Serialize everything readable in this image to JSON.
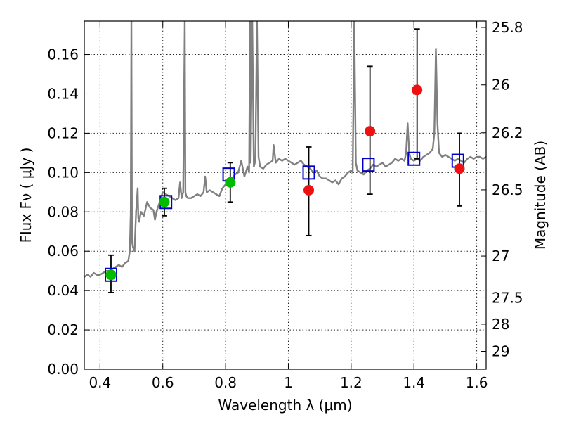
{
  "chart_data": {
    "type": "scatter",
    "xlabel": "Wavelength  λ (μm)",
    "ylabel": "Flux  Fν  ( μJy )",
    "y2label": "Magnitude (AB)",
    "xlim": [
      0.35,
      1.63
    ],
    "ylim": [
      0.0,
      0.177
    ],
    "x_ticks": [
      0.4,
      0.6,
      0.8,
      1.0,
      1.2,
      1.4,
      1.6
    ],
    "x_tick_labels": [
      "0.4",
      "0.6",
      "0.8",
      "1",
      "1.2",
      "1.4",
      "1.6"
    ],
    "y_ticks": [
      0.0,
      0.02,
      0.04,
      0.06,
      0.08,
      0.1,
      0.12,
      0.14,
      0.16
    ],
    "y_tick_labels": [
      "0.00",
      "0.02",
      "0.04",
      "0.06",
      "0.08",
      "0.10",
      "0.12",
      "0.14",
      "0.16"
    ],
    "y2_ticks": [
      25.8,
      26,
      26.2,
      26.5,
      27,
      27.5,
      28,
      29
    ],
    "y2_tick_labels": [
      "25.8",
      "26",
      "26.2",
      "26.5",
      "27",
      "27.5",
      "28",
      "29"
    ],
    "grid": true,
    "series": [
      {
        "kind": "line",
        "color": "#808080",
        "x": [
          0.35,
          0.36,
          0.37,
          0.38,
          0.39,
          0.4,
          0.41,
          0.42,
          0.43,
          0.44,
          0.45,
          0.46,
          0.47,
          0.48,
          0.49,
          0.495,
          0.498,
          0.5,
          0.502,
          0.505,
          0.51,
          0.515,
          0.52,
          0.522,
          0.525,
          0.53,
          0.54,
          0.55,
          0.56,
          0.57,
          0.575,
          0.58,
          0.59,
          0.6,
          0.61,
          0.62,
          0.63,
          0.64,
          0.65,
          0.655,
          0.66,
          0.665,
          0.67,
          0.672,
          0.675,
          0.68,
          0.69,
          0.7,
          0.71,
          0.72,
          0.73,
          0.735,
          0.74,
          0.75,
          0.76,
          0.77,
          0.78,
          0.79,
          0.8,
          0.81,
          0.82,
          0.83,
          0.84,
          0.85,
          0.86,
          0.87,
          0.875,
          0.878,
          0.88,
          0.885,
          0.89,
          0.895,
          0.9,
          0.905,
          0.91,
          0.92,
          0.93,
          0.94,
          0.95,
          0.953,
          0.96,
          0.97,
          0.98,
          0.99,
          1.0,
          1.01,
          1.02,
          1.03,
          1.04,
          1.05,
          1.06,
          1.07,
          1.08,
          1.09,
          1.1,
          1.11,
          1.12,
          1.13,
          1.14,
          1.15,
          1.16,
          1.17,
          1.18,
          1.19,
          1.2,
          1.205,
          1.21,
          1.215,
          1.22,
          1.23,
          1.24,
          1.25,
          1.26,
          1.27,
          1.28,
          1.29,
          1.3,
          1.31,
          1.32,
          1.33,
          1.34,
          1.35,
          1.36,
          1.37,
          1.375,
          1.38,
          1.385,
          1.39,
          1.4,
          1.41,
          1.42,
          1.43,
          1.44,
          1.45,
          1.46,
          1.465,
          1.47,
          1.475,
          1.48,
          1.49,
          1.5,
          1.51,
          1.52,
          1.53,
          1.54,
          1.55,
          1.56,
          1.57,
          1.58,
          1.59,
          1.6,
          1.61,
          1.62,
          1.63
        ],
        "values": [
          0.047,
          0.048,
          0.047,
          0.049,
          0.048,
          0.048,
          0.049,
          0.05,
          0.05,
          0.051,
          0.052,
          0.053,
          0.052,
          0.054,
          0.055,
          0.06,
          0.08,
          0.177,
          0.065,
          0.062,
          0.06,
          0.08,
          0.092,
          0.077,
          0.075,
          0.08,
          0.078,
          0.085,
          0.082,
          0.081,
          0.076,
          0.08,
          0.085,
          0.09,
          0.089,
          0.088,
          0.087,
          0.086,
          0.087,
          0.095,
          0.087,
          0.09,
          0.177,
          0.09,
          0.088,
          0.087,
          0.087,
          0.088,
          0.089,
          0.088,
          0.09,
          0.098,
          0.09,
          0.091,
          0.09,
          0.089,
          0.088,
          0.092,
          0.094,
          0.096,
          0.097,
          0.099,
          0.1,
          0.106,
          0.098,
          0.103,
          0.1,
          0.177,
          0.105,
          0.177,
          0.103,
          0.106,
          0.177,
          0.108,
          0.103,
          0.102,
          0.104,
          0.105,
          0.106,
          0.114,
          0.105,
          0.107,
          0.106,
          0.107,
          0.106,
          0.105,
          0.104,
          0.105,
          0.106,
          0.104,
          0.103,
          0.102,
          0.1,
          0.101,
          0.098,
          0.097,
          0.097,
          0.096,
          0.095,
          0.096,
          0.094,
          0.097,
          0.098,
          0.1,
          0.101,
          0.1,
          0.177,
          0.105,
          0.101,
          0.1,
          0.099,
          0.101,
          0.102,
          0.104,
          0.103,
          0.104,
          0.105,
          0.103,
          0.104,
          0.105,
          0.107,
          0.106,
          0.107,
          0.106,
          0.11,
          0.125,
          0.11,
          0.107,
          0.106,
          0.107,
          0.106,
          0.108,
          0.109,
          0.11,
          0.112,
          0.12,
          0.163,
          0.125,
          0.11,
          0.108,
          0.109,
          0.108,
          0.107,
          0.106,
          0.107,
          0.106,
          0.105,
          0.107,
          0.108,
          0.107,
          0.108,
          0.108,
          0.107,
          0.108
        ]
      },
      {
        "kind": "scatter-errorbar",
        "marker": "circle",
        "color": "#00bb00",
        "x": [
          0.435,
          0.605,
          0.815
        ],
        "values": [
          0.048,
          0.085,
          0.095
        ],
        "yerr_low": [
          0.039,
          0.078,
          0.085
        ],
        "yerr_high": [
          0.058,
          0.092,
          0.105
        ]
      },
      {
        "kind": "scatter-errorbar",
        "marker": "circle",
        "color": "#ee1111",
        "x": [
          1.065,
          1.26,
          1.41,
          1.545
        ],
        "values": [
          0.091,
          0.121,
          0.142,
          0.102
        ],
        "yerr_low": [
          0.068,
          0.089,
          0.107,
          0.083
        ],
        "yerr_high": [
          0.113,
          0.154,
          0.173,
          0.12
        ]
      },
      {
        "kind": "scatter",
        "marker": "square-open",
        "color": "#0000cc",
        "x": [
          0.435,
          0.61,
          0.81,
          1.065,
          1.255,
          1.4,
          1.54
        ],
        "values": [
          0.048,
          0.085,
          0.099,
          0.1,
          0.104,
          0.107,
          0.106
        ]
      }
    ]
  }
}
